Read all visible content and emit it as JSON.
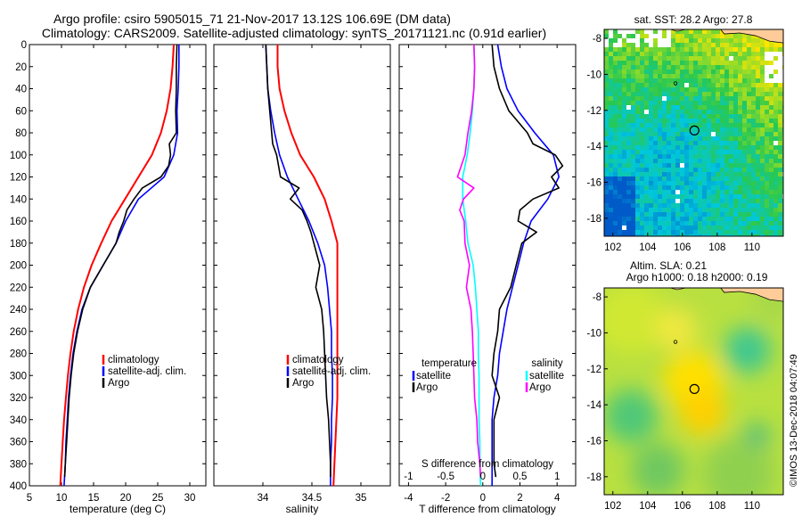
{
  "header": {
    "line1": "Argo profile: csiro 5905015_71 21-Nov-2017 13.12S 106.69E (DM data)",
    "line2": "Climatology: CARS2009. Satellite-adjusted climatology: synTS_20171121.nc (0.91d earlier)"
  },
  "watermark": "©IMOS 13-Dec-2018 04:07:49",
  "colors": {
    "climatology": "#ff0000",
    "satellite": "#0000ff",
    "argo": "#000000",
    "s_satellite": "#00ffff",
    "s_argo": "#ff00ff"
  },
  "chart_data": [
    {
      "id": "temperature",
      "type": "line",
      "xlabel": "temperature (deg C)",
      "xlim": [
        5,
        32.5
      ],
      "xticks": [
        5,
        10,
        15,
        20,
        25,
        30
      ],
      "ylim": [
        0,
        400
      ],
      "yticks": [
        0,
        20,
        40,
        60,
        80,
        100,
        120,
        140,
        160,
        180,
        200,
        220,
        240,
        260,
        280,
        300,
        320,
        340,
        360,
        380,
        400
      ],
      "y_reversed": true,
      "legend": [
        "climatology",
        "satellite-adj. clim.",
        "Argo"
      ],
      "series": [
        {
          "name": "climatology",
          "color": "#ff0000",
          "depth": [
            0,
            20,
            40,
            60,
            80,
            100,
            120,
            140,
            160,
            180,
            200,
            220,
            240,
            260,
            280,
            300,
            320,
            340,
            360,
            380,
            400
          ],
          "values": [
            27.5,
            27.3,
            27.0,
            26.4,
            25.5,
            24.1,
            22.0,
            19.9,
            17.8,
            16.2,
            14.7,
            13.5,
            12.6,
            11.9,
            11.4,
            11.0,
            10.7,
            10.4,
            10.2,
            10.0,
            9.8
          ]
        },
        {
          "name": "satellite-adj. clim.",
          "color": "#0000ff",
          "depth": [
            0,
            20,
            40,
            60,
            80,
            100,
            120,
            140,
            160,
            180,
            200,
            220,
            240,
            260,
            280,
            300,
            320,
            340,
            360,
            380,
            400
          ],
          "values": [
            28.3,
            28.3,
            28.2,
            28.0,
            28.1,
            27.5,
            26.0,
            22.0,
            20.0,
            18.5,
            16.5,
            14.5,
            13.2,
            12.4,
            11.8,
            11.4,
            11.1,
            10.9,
            10.7,
            10.6,
            10.4
          ]
        },
        {
          "name": "Argo",
          "color": "#000000",
          "depth": [
            0,
            20,
            40,
            60,
            80,
            90,
            100,
            110,
            120,
            130,
            140,
            150,
            160,
            170,
            180,
            200,
            220,
            240,
            260,
            280,
            300,
            320,
            340,
            360,
            380,
            392
          ],
          "values": [
            28.0,
            27.9,
            27.9,
            27.8,
            27.9,
            26.8,
            27.0,
            26.7,
            25.5,
            22.6,
            21.3,
            20.2,
            19.7,
            19.0,
            18.5,
            16.5,
            14.5,
            13.3,
            12.5,
            11.9,
            11.5,
            11.2,
            11.0,
            10.8,
            10.6,
            10.5
          ]
        }
      ]
    },
    {
      "id": "salinity",
      "type": "line",
      "xlabel": "salinity",
      "xlim": [
        33.5,
        35.3
      ],
      "xticks": [
        34,
        34.5,
        35
      ],
      "ylim": [
        0,
        400
      ],
      "y_reversed": true,
      "legend": [
        "climatology",
        "satellite-adj. clim.",
        "Argo"
      ],
      "series": [
        {
          "name": "climatology",
          "color": "#ff0000",
          "depth": [
            0,
            20,
            40,
            60,
            80,
            100,
            120,
            140,
            160,
            180,
            200,
            220,
            240,
            260,
            280,
            300,
            320,
            340,
            360,
            380,
            400
          ],
          "values": [
            34.15,
            34.15,
            34.17,
            34.22,
            34.29,
            34.38,
            34.52,
            34.63,
            34.7,
            34.76,
            34.76,
            34.76,
            34.76,
            34.76,
            34.76,
            34.76,
            34.76,
            34.75,
            34.74,
            34.73,
            34.72
          ]
        },
        {
          "name": "satellite-adj. clim.",
          "color": "#0000ff",
          "depth": [
            0,
            20,
            40,
            60,
            80,
            100,
            120,
            140,
            160,
            180,
            200,
            220,
            240,
            260,
            280,
            300,
            320,
            340,
            360,
            380,
            400
          ],
          "values": [
            34.03,
            34.04,
            34.05,
            34.08,
            34.12,
            34.17,
            34.25,
            34.36,
            34.47,
            34.56,
            34.63,
            34.66,
            34.68,
            34.7,
            34.7,
            34.71,
            34.71,
            34.7,
            34.7,
            34.69,
            34.69
          ]
        },
        {
          "name": "Argo",
          "color": "#000000",
          "depth": [
            0,
            20,
            40,
            60,
            80,
            90,
            100,
            110,
            120,
            130,
            140,
            150,
            160,
            170,
            180,
            200,
            220,
            240,
            260,
            280,
            300,
            320,
            340,
            360,
            380,
            392
          ],
          "values": [
            34.03,
            34.04,
            34.05,
            34.07,
            34.09,
            34.1,
            34.14,
            34.16,
            34.18,
            34.37,
            34.28,
            34.4,
            34.45,
            34.49,
            34.52,
            34.58,
            34.54,
            34.6,
            34.62,
            34.63,
            34.64,
            34.65,
            34.67,
            34.68,
            34.69,
            34.69
          ]
        }
      ]
    },
    {
      "id": "difference",
      "type": "line",
      "xlabel": "T difference from climatology",
      "xlabel_top": "S difference from climatology",
      "xlim": [
        -4.5,
        5.0
      ],
      "xticks": [
        -4,
        -2,
        0,
        2,
        4
      ],
      "top_ticks": [
        "-1",
        "-0.5",
        "0",
        "0.5",
        "1"
      ],
      "top_tick_values": [
        -1,
        -0.5,
        0,
        0.5,
        1
      ],
      "s_scale": 4,
      "ylim": [
        0,
        400
      ],
      "y_reversed": true,
      "legend_left_title": "temperature",
      "legend_left": [
        "satellite",
        "Argo"
      ],
      "legend_right_title": "salinity",
      "legend_right": [
        "satellite",
        "Argo"
      ],
      "series": [
        {
          "name": "T satellite",
          "color": "#0000ff",
          "quantity": "T",
          "depth": [
            0,
            20,
            40,
            60,
            80,
            100,
            120,
            140,
            160,
            180,
            200,
            220,
            240,
            260,
            280,
            300,
            320,
            340,
            360,
            380,
            400
          ],
          "values": [
            0.8,
            1.0,
            1.3,
            1.9,
            2.8,
            3.8,
            4.1,
            3.5,
            2.6,
            2.2,
            1.9,
            1.6,
            1.3,
            1.1,
            0.9,
            0.8,
            0.6,
            0.5,
            0.5,
            0.5,
            0.5
          ]
        },
        {
          "name": "T Argo",
          "color": "#000000",
          "quantity": "T",
          "depth": [
            0,
            20,
            40,
            60,
            80,
            90,
            100,
            110,
            120,
            130,
            140,
            150,
            160,
            170,
            180,
            200,
            220,
            240,
            260,
            280,
            300,
            320,
            340,
            360,
            380,
            392
          ],
          "values": [
            0.5,
            0.6,
            0.9,
            1.4,
            2.4,
            2.7,
            3.9,
            4.3,
            3.7,
            4.1,
            2.7,
            2.0,
            1.9,
            2.9,
            2.1,
            1.8,
            1.5,
            0.9,
            0.8,
            0.6,
            0.5,
            0.9,
            0.6,
            0.6,
            0.6,
            0.7
          ]
        },
        {
          "name": "S satellite",
          "color": "#00ffff",
          "quantity": "S",
          "depth": [
            0,
            20,
            40,
            60,
            80,
            100,
            120,
            140,
            160,
            180,
            200,
            220,
            240,
            260,
            280,
            300,
            320,
            340,
            360,
            380,
            400
          ],
          "values": [
            -0.12,
            -0.11,
            -0.12,
            -0.14,
            -0.17,
            -0.21,
            -0.27,
            -0.27,
            -0.23,
            -0.2,
            -0.13,
            -0.1,
            -0.08,
            -0.06,
            -0.06,
            -0.05,
            -0.05,
            -0.05,
            -0.04,
            -0.04,
            -0.03
          ]
        },
        {
          "name": "S Argo",
          "color": "#ff00ff",
          "quantity": "S",
          "depth": [
            0,
            20,
            40,
            60,
            80,
            100,
            120,
            130,
            140,
            150,
            160,
            180,
            200,
            220,
            240,
            260,
            280,
            300,
            320,
            340,
            360,
            380,
            392
          ],
          "values": [
            -0.12,
            -0.11,
            -0.12,
            -0.15,
            -0.2,
            -0.24,
            -0.34,
            -0.12,
            -0.26,
            -0.31,
            -0.25,
            -0.24,
            -0.18,
            -0.22,
            -0.16,
            -0.14,
            -0.13,
            -0.12,
            -0.11,
            -0.08,
            -0.07,
            -0.04,
            -0.03
          ]
        }
      ]
    },
    {
      "id": "sst_map",
      "type": "heatmap",
      "title": "sat. SST: 28.2 Argo: 27.8",
      "xlim": [
        101.5,
        111.8
      ],
      "ylim": [
        -19.0,
        -7.5
      ],
      "xticks": [
        102,
        104,
        106,
        108,
        110
      ],
      "yticks": [
        -8,
        -10,
        -12,
        -14,
        -16,
        -18
      ],
      "argo_position": [
        106.69,
        -13.12
      ],
      "marker2_position": [
        105.6,
        -10.5
      ]
    },
    {
      "id": "sla_map",
      "type": "heatmap",
      "title_line1": "Altim. SLA: 0.21",
      "title_line2": "Argo h1000: 0.18 h2000: 0.19",
      "xlim": [
        101.5,
        111.8
      ],
      "ylim": [
        -19.0,
        -7.5
      ],
      "xticks": [
        102,
        104,
        106,
        108,
        110
      ],
      "yticks": [
        -8,
        -10,
        -12,
        -14,
        -16,
        -18
      ],
      "argo_position": [
        106.69,
        -13.12
      ],
      "marker2_position": [
        105.6,
        -10.5
      ]
    }
  ]
}
